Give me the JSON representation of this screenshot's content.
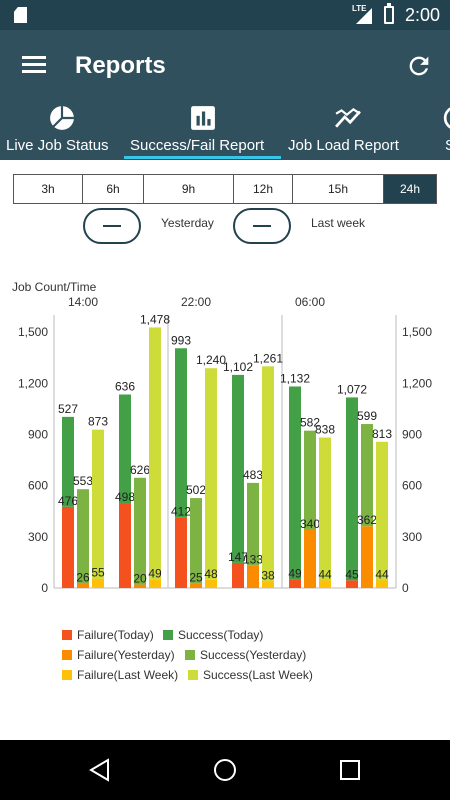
{
  "status_bar": {
    "network": "LTE",
    "time": "2:00"
  },
  "app_bar": {
    "title": "Reports"
  },
  "tabs": [
    {
      "label": "Live Job Status",
      "icon": "pie-chart-icon",
      "active": false
    },
    {
      "label": "Success/Fail Report",
      "icon": "bar-chart-icon",
      "active": true
    },
    {
      "label": "Job Load Report",
      "icon": "trend-icon",
      "active": false
    },
    {
      "label": "S",
      "icon": "partial-tab-icon",
      "active": false
    }
  ],
  "range_buttons": [
    {
      "label": "3h",
      "active": false
    },
    {
      "label": "6h",
      "active": false
    },
    {
      "label": "9h",
      "active": false
    },
    {
      "label": "12h",
      "active": false
    },
    {
      "label": "15h",
      "active": false
    },
    {
      "label": "24h",
      "active": true
    }
  ],
  "toggles": [
    {
      "label": "Yesterday"
    },
    {
      "label": "Last week"
    }
  ],
  "colors": {
    "header_dark": "#23424f",
    "header": "#30505e",
    "tab_indicator": "#37c6e8",
    "failure_today": "#f4511e",
    "success_today": "#43a047",
    "failure_yesterday": "#fb8c00",
    "success_yesterday": "#7cb342",
    "failure_last_week": "#ffc107",
    "success_last_week": "#cddc39"
  },
  "chart_data": {
    "type": "bar",
    "title": "Job Count/Time",
    "top_axis_labels": [
      "14:00",
      "22:00",
      "06:00"
    ],
    "ylim": [
      0,
      1600
    ],
    "yticks": [
      0,
      300,
      600,
      900,
      1200,
      1500
    ],
    "ytick_labels": [
      "0",
      "300",
      "600",
      "900",
      "1,200",
      "1,500"
    ],
    "grid": "vertical separators",
    "legend_position": "bottom-left",
    "groups": 6,
    "series": [
      {
        "name": "Failure(Today)",
        "color": "#f4511e",
        "values": [
          476,
          498,
          412,
          147,
          49,
          45
        ]
      },
      {
        "name": "Success(Today)",
        "color": "#43a047",
        "values": [
          527,
          636,
          993,
          1102,
          1132,
          1072
        ]
      },
      {
        "name": "Failure(Yesterday)",
        "color": "#fb8c00",
        "values": [
          26,
          20,
          25,
          133,
          340,
          362
        ]
      },
      {
        "name": "Success(Yesterday)",
        "color": "#7cb342",
        "values": [
          553,
          626,
          502,
          483,
          582,
          599
        ]
      },
      {
        "name": "Failure(Last Week)",
        "color": "#ffc107",
        "values": [
          55,
          49,
          48,
          38,
          44,
          44
        ]
      },
      {
        "name": "Success(Last Week)",
        "color": "#cddc39",
        "values": [
          873,
          1478,
          1240,
          1261,
          838,
          813
        ]
      }
    ],
    "bar_label_texts": [
      [
        "527",
        "553",
        "873"
      ],
      [
        "636",
        "626",
        "1,478"
      ],
      [
        "993",
        "502",
        "1,240"
      ],
      [
        "1,102",
        "483",
        "1,261"
      ],
      [
        "1,132",
        "582",
        "838"
      ],
      [
        "1,072",
        "599",
        "813"
      ]
    ],
    "failure_label_texts": [
      [
        "476",
        "26",
        "55"
      ],
      [
        "498",
        "20",
        "49"
      ],
      [
        "412",
        "25",
        "48"
      ],
      [
        "147",
        "133",
        "38"
      ],
      [
        "49",
        "340",
        "44"
      ],
      [
        "45",
        "362",
        "44"
      ]
    ]
  }
}
